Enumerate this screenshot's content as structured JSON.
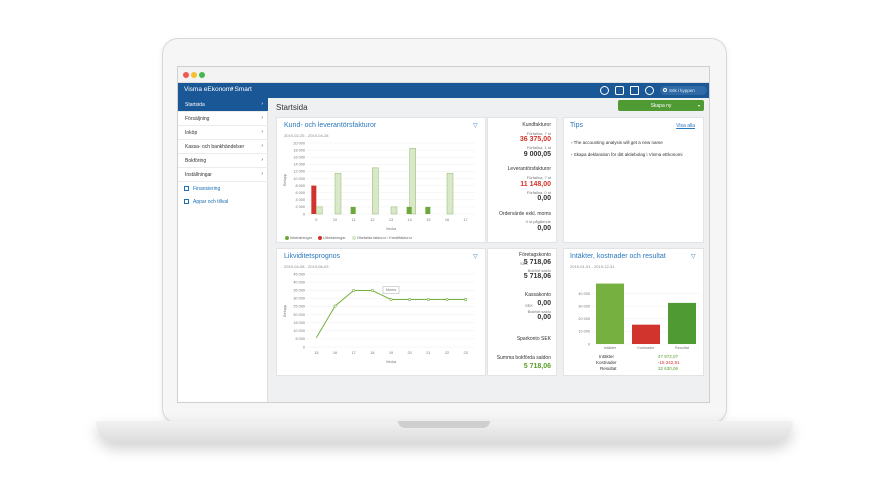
{
  "window": {
    "traffic_colors": [
      "#ef5a51",
      "#f5bf2f",
      "#43b94d"
    ]
  },
  "topbar": {
    "app_name": "Visma eEkonomi Smart",
    "search_placeholder": "Sök i kyppen",
    "icons": [
      "lifebuoy-icon",
      "chat-icon",
      "shopping-cart-icon",
      "help-icon"
    ]
  },
  "sidebar": {
    "items": [
      {
        "label": "Startsida",
        "active": true
      },
      {
        "label": "Försäljning",
        "active": false
      },
      {
        "label": "Inköp",
        "active": false
      },
      {
        "label": "Kassa- och bankhändelser",
        "active": false
      },
      {
        "label": "Bokföring",
        "active": false
      },
      {
        "label": "Inställningar",
        "active": false
      }
    ],
    "links": [
      {
        "label": "Finansiering",
        "icon": "finance-icon"
      },
      {
        "label": "Appar och tillval",
        "icon": "apps-icon"
      }
    ]
  },
  "main": {
    "title": "Startsida",
    "create_button": "Skapa ny"
  },
  "invoices": {
    "title": "Kund- och leverantörsfakturor",
    "period": "2019-02-25 - 2019-04-28",
    "xlabel": "Vecka",
    "ylabel": "Belopp",
    "legend": [
      "Inbetalningar",
      "Utbetalningar",
      "Obetalda fakturor / Kreditfakturor"
    ],
    "kundfakturor": {
      "label": "Kundfakturor",
      "overdue_label": "Förfallna, 7 st",
      "overdue": "36 375,00",
      "unpaid_label": "Förfallna, 1 st",
      "unpaid": "9 000,05"
    },
    "leverantor": {
      "label": "Leverantörsfakturor",
      "overdue_label": "Förfallna, 7 st",
      "overdue": "11 148,00",
      "unpaid_label": "Förfallna, 0 st",
      "unpaid": "0,00"
    },
    "orders": {
      "label": "Ordervärde exkl. moms",
      "sub_label": "0 st pågående",
      "value": "0,00"
    }
  },
  "liquidity": {
    "title": "Likviditetsprognos",
    "period": "2019-04-08 - 2019-06-03",
    "xlabel": "Vecka",
    "ylabel": "Belopp",
    "tooltip": "Moms"
  },
  "accounts": {
    "company": {
      "label": "Företagskonto",
      "currency": "SEK",
      "value": "5 718,06",
      "booked_label": "Bokfört saldo",
      "booked": "5 718,06"
    },
    "cash": {
      "label": "Kassakonto",
      "currency": "SEK",
      "value": "0,00",
      "booked_label": "Bokfört saldo",
      "booked": "0,00"
    },
    "savings": {
      "label": "Sparkonto SEK"
    },
    "sum": {
      "label": "Summa bokförda saldon",
      "value": "5 718,06"
    }
  },
  "tips": {
    "title": "Tips",
    "link": "Visa alla",
    "items": [
      "The accounting analysis will get a new name",
      "Skapa deklaration för ditt aktiebolag i Visma eEkonomi"
    ]
  },
  "results": {
    "title": "Intäkter, kostnader och resultat",
    "period": "2019-01-01 - 2019-12-31",
    "rows": [
      {
        "label": "Intäkter",
        "value": "47 972,07"
      },
      {
        "label": "Kostnader",
        "value": "-15 342,91"
      },
      {
        "label": "Resultat",
        "value": "32 630,06"
      }
    ]
  },
  "chart_data": [
    {
      "type": "bar",
      "title": "Kund- och leverantörsfakturor",
      "xlabel": "Vecka",
      "ylabel": "Belopp",
      "categories": [
        "9",
        "10",
        "11",
        "12",
        "13",
        "14",
        "15",
        "16",
        "17"
      ],
      "ylim": [
        0,
        20000
      ],
      "series": [
        {
          "name": "Inbetalningar",
          "values": [
            0,
            0,
            2000,
            0,
            0,
            2000,
            2000,
            0,
            0
          ]
        },
        {
          "name": "Utbetalningar",
          "values": [
            8000,
            0,
            0,
            0,
            0,
            0,
            0,
            0,
            0
          ]
        },
        {
          "name": "Obetalda fakturor / Kreditfakturor",
          "values": [
            2000,
            11500,
            0,
            13000,
            2000,
            18500,
            0,
            11500,
            0
          ]
        }
      ],
      "colors": {
        "green": "#6da83c",
        "red": "#d0342c",
        "unpaid": "#d8e8c9"
      }
    },
    {
      "type": "line",
      "title": "Likviditetsprognos",
      "xlabel": "Vecka",
      "ylabel": "Belopp",
      "x": [
        "15",
        "16",
        "17",
        "18",
        "19",
        "20",
        "21",
        "22",
        "23"
      ],
      "y": [
        5700,
        25200,
        34800,
        34800,
        29300,
        29300,
        29300,
        29300,
        29300
      ],
      "ylim": [
        0,
        45000
      ]
    },
    {
      "type": "bar",
      "title": "Intäkter, kostnader och resultat",
      "categories": [
        "Intäkter",
        "Kostnader",
        "Resultat"
      ],
      "values": [
        47972.07,
        15342.91,
        32630.06
      ],
      "ylim": [
        0,
        50000
      ],
      "colors": [
        "#76b041",
        "#d0342c",
        "#4f9a33"
      ]
    }
  ]
}
